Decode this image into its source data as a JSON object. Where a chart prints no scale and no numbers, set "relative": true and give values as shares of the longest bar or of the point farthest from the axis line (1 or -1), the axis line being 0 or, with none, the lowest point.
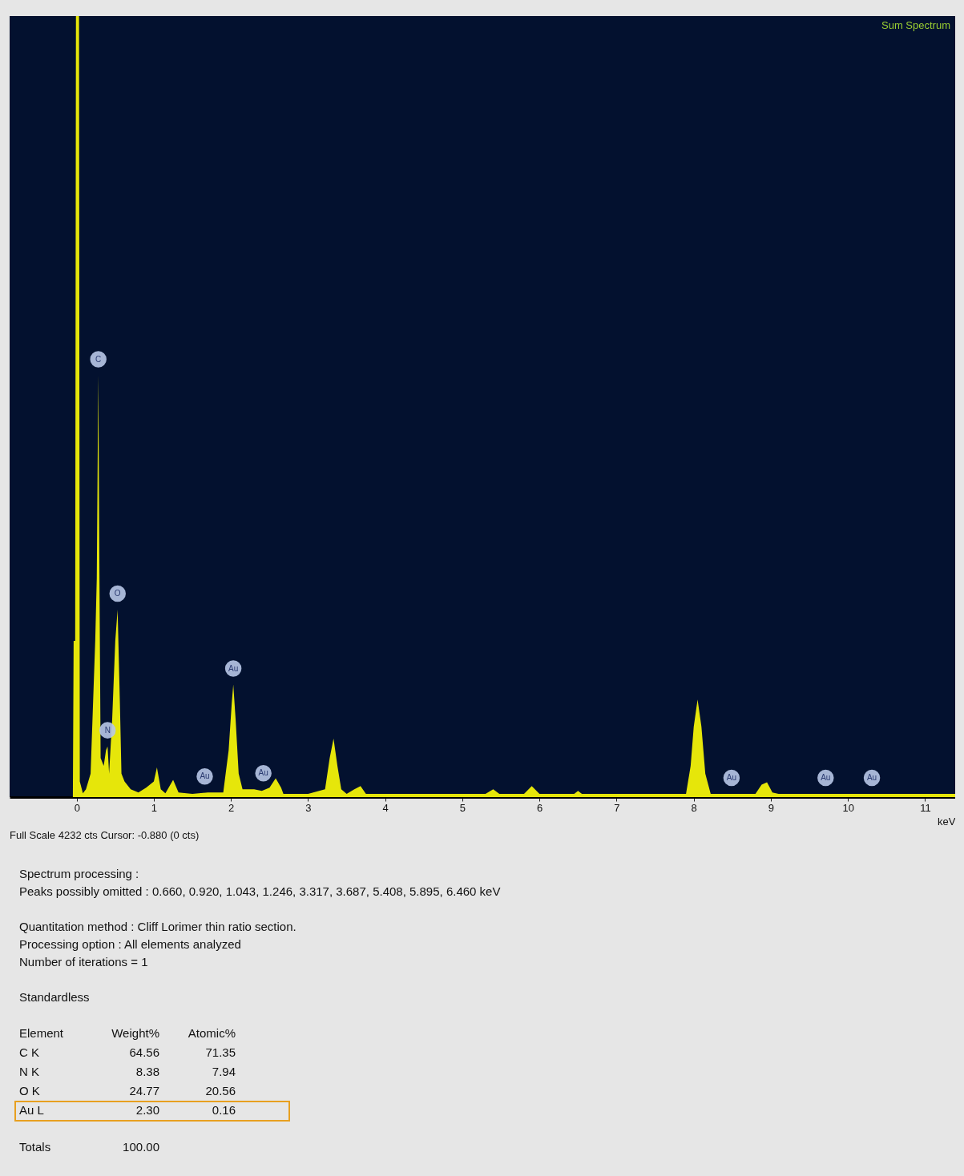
{
  "chart_data": {
    "type": "area",
    "title": "Sum Spectrum",
    "xlabel": "keV",
    "relative": true,
    "legend": false,
    "grid": false,
    "xlim": [
      -0.87,
      11.39
    ],
    "xticks": [
      0,
      1,
      2,
      3,
      4,
      5,
      6,
      7,
      8,
      9,
      10,
      11
    ],
    "series": [
      {
        "color": "#e6e60a",
        "x": [
          -0.87,
          -0.05,
          -0.04,
          -0.02,
          -0.01,
          0.03,
          0.04,
          0.08,
          0.12,
          0.18,
          0.24,
          0.26,
          0.28,
          0.295,
          0.31,
          0.35,
          0.38,
          0.4,
          0.42,
          0.46,
          0.5,
          0.53,
          0.56,
          0.58,
          0.62,
          0.7,
          0.8,
          0.9,
          1.0,
          1.04,
          1.09,
          1.15,
          1.25,
          1.32,
          1.5,
          1.7,
          1.9,
          1.97,
          2.01,
          2.03,
          2.06,
          2.1,
          2.15,
          2.3,
          2.4,
          2.5,
          2.58,
          2.65,
          2.68,
          3.0,
          3.22,
          3.28,
          3.33,
          3.38,
          3.43,
          3.5,
          3.6,
          3.68,
          3.75,
          5.3,
          5.4,
          5.48,
          5.8,
          5.9,
          6.0,
          6.45,
          6.5,
          6.55,
          7.9,
          7.96,
          8.0,
          8.05,
          8.1,
          8.15,
          8.22,
          8.8,
          8.88,
          8.95,
          9.02,
          9.1,
          11.39
        ],
        "values": [
          0,
          0,
          0.2,
          0.2,
          1,
          1,
          0.02,
          0.005,
          0.01,
          0.03,
          0.2,
          0.28,
          0.54,
          0.28,
          0.05,
          0.04,
          0.06,
          0.065,
          0.03,
          0.1,
          0.2,
          0.24,
          0.12,
          0.03,
          0.02,
          0.01,
          0.006,
          0.012,
          0.02,
          0.038,
          0.01,
          0.005,
          0.022,
          0.006,
          0.004,
          0.006,
          0.006,
          0.06,
          0.12,
          0.144,
          0.1,
          0.03,
          0.01,
          0.01,
          0.008,
          0.012,
          0.024,
          0.012,
          0.004,
          0.004,
          0.01,
          0.05,
          0.075,
          0.04,
          0.01,
          0.004,
          0.01,
          0.014,
          0.004,
          0.004,
          0.01,
          0.004,
          0.004,
          0.014,
          0.004,
          0.004,
          0.008,
          0.004,
          0.004,
          0.04,
          0.09,
          0.125,
          0.09,
          0.03,
          0.004,
          0.004,
          0.016,
          0.019,
          0.006,
          0.004,
          0.004
        ]
      }
    ],
    "annotations": [
      {
        "text": "C",
        "x": 0.28,
        "y": 0.54
      },
      {
        "text": "O",
        "x": 0.53,
        "y": 0.24
      },
      {
        "text": "N",
        "x": 0.4,
        "y": 0.065
      },
      {
        "text": "Au",
        "x": 1.66,
        "y": 0.006
      },
      {
        "text": "Au",
        "x": 2.03,
        "y": 0.144
      },
      {
        "text": "Au",
        "x": 2.42,
        "y": 0.01
      },
      {
        "text": "Au",
        "x": 8.49,
        "y": 0.004
      },
      {
        "text": "Au",
        "x": 9.71,
        "y": 0.004
      },
      {
        "text": "Au",
        "x": 10.31,
        "y": 0.004
      },
      "Full Scale 4232 cts Cursor: -0.880  (0 cts)",
      "Spectrum processing :\nPeaks possibly omitted : 0.660, 0.920, 1.043, 1.246, 3.317, 3.687, 5.408, 5.895, 6.460 keV",
      "Quantitation method : Cliff Lorimer thin ratio section.\nProcessing option : All elements analyzed\nNumber of iterations = 1",
      "Standardless",
      "Element\tWeight%\tAtomic%\nC K\t64.56\t71.35\nN K\t8.38\t7.94\nO K\t24.77\t20.56\nAu L\t2.30\t0.16",
      "Totals\t100.00"
    ]
  }
}
